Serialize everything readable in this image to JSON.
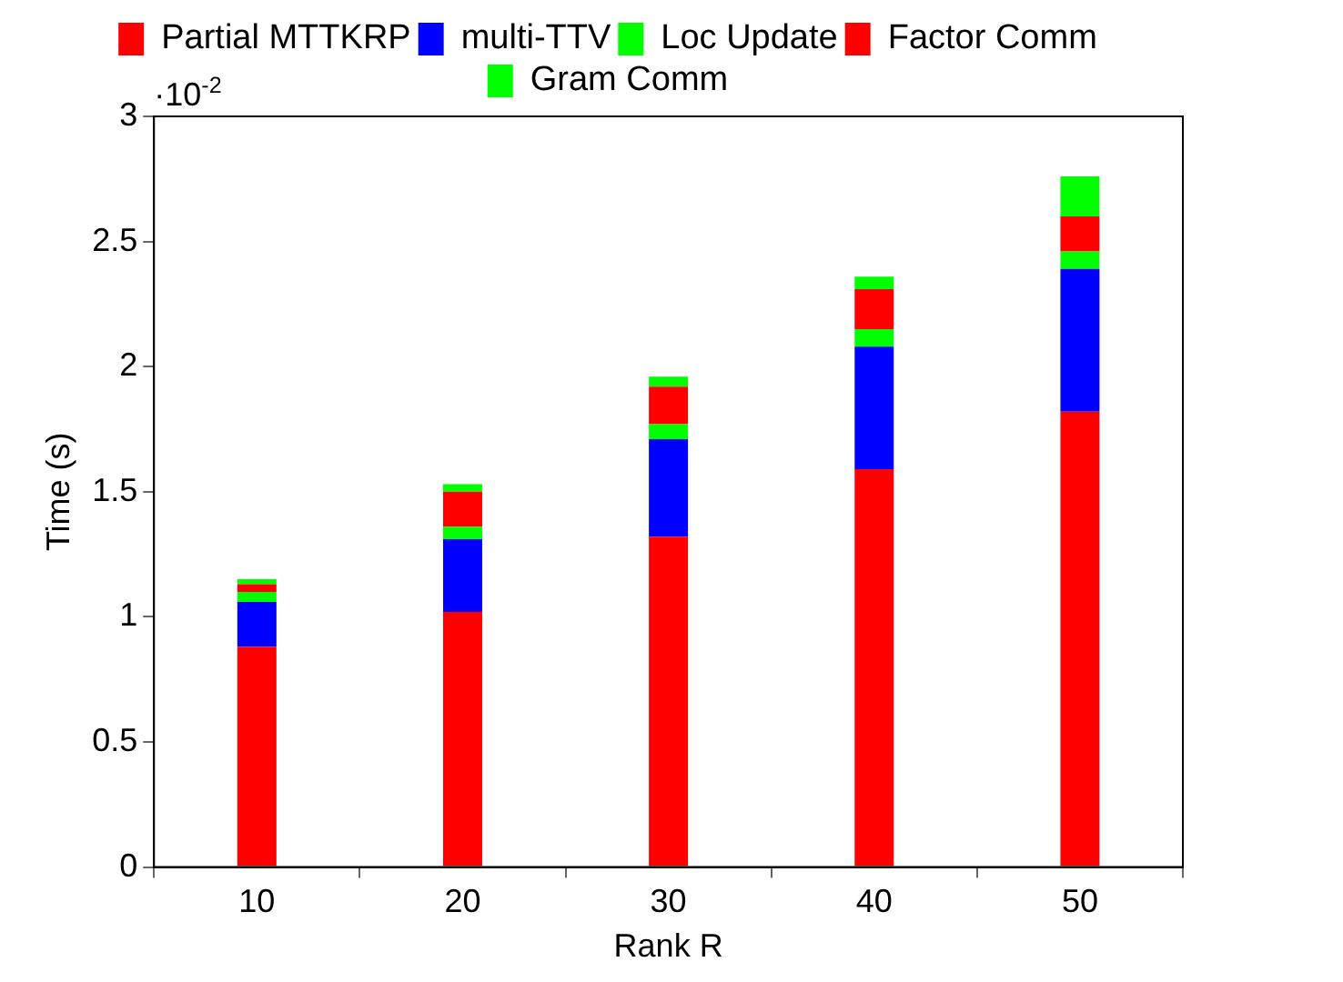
{
  "chart_data": {
    "type": "bar",
    "stacked": true,
    "categories": [
      "10",
      "20",
      "30",
      "40",
      "50"
    ],
    "xlabel": "Rank R",
    "ylabel": "Time (s)",
    "ylim": [
      0,
      3
    ],
    "yticks": [
      0,
      0.5,
      1,
      1.5,
      2,
      2.5,
      3
    ],
    "annotations": [
      "·10$^{-2}$"
    ],
    "legend": "top",
    "grid": false,
    "series": [
      {
        "name": "Partial MTTKRP",
        "color": "#ff0000",
        "values": [
          0.88,
          1.02,
          1.32,
          1.59,
          1.82
        ]
      },
      {
        "name": "multi-TTV",
        "color": "#0000ff",
        "values": [
          0.18,
          0.29,
          0.39,
          0.49,
          0.57
        ]
      },
      {
        "name": "Loc Update",
        "color": "#00ff00",
        "values": [
          0.04,
          0.05,
          0.06,
          0.07,
          0.07
        ]
      },
      {
        "name": "Factor Comm",
        "color": "#ff0000",
        "values": [
          0.03,
          0.14,
          0.15,
          0.16,
          0.14
        ]
      },
      {
        "name": "Gram Comm",
        "color": "#00ff00",
        "values": [
          0.02,
          0.03,
          0.04,
          0.05,
          0.16
        ]
      }
    ]
  }
}
